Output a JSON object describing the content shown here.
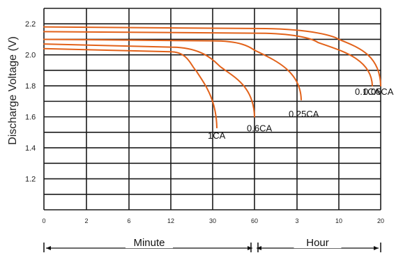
{
  "chart_data": {
    "type": "line",
    "ylabel": "Discharge Voltage (V)",
    "ylim": [
      1.0,
      2.3
    ],
    "yticks": [
      "1.2",
      "1.4",
      "1.6",
      "1.8",
      "2.0",
      "2.2"
    ],
    "xticks": [
      "0",
      "2",
      "6",
      "12",
      "30",
      "60",
      "3",
      "10",
      "20"
    ],
    "x_sections": [
      {
        "label": "Minute",
        "from_tick": 0,
        "to_tick": 5
      },
      {
        "label": "Hour",
        "from_tick": 5,
        "to_tick": 8
      }
    ],
    "grid": true,
    "series_color": "#e2621a",
    "series": [
      {
        "name": "1CA",
        "points": [
          [
            0,
            2.04
          ],
          [
            3,
            2.02
          ],
          [
            3.6,
            1.9
          ],
          [
            3.9,
            1.7
          ],
          [
            4.1,
            1.53
          ]
        ]
      },
      {
        "name": "0.6CA",
        "points": [
          [
            0,
            2.07
          ],
          [
            3,
            2.05
          ],
          [
            4.2,
            1.92
          ],
          [
            4.7,
            1.77
          ],
          [
            5.0,
            1.6
          ]
        ]
      },
      {
        "name": "0.25CA",
        "points": [
          [
            0,
            2.1
          ],
          [
            4,
            2.09
          ],
          [
            5.0,
            2.03
          ],
          [
            5.8,
            1.87
          ],
          [
            6.1,
            1.71
          ]
        ]
      },
      {
        "name": "0.1CA",
        "points": [
          [
            0,
            2.15
          ],
          [
            5,
            2.14
          ],
          [
            6.5,
            2.08
          ],
          [
            7.4,
            1.95
          ],
          [
            7.8,
            1.8
          ]
        ]
      },
      {
        "name": "0.05CA",
        "points": [
          [
            0,
            2.18
          ],
          [
            5,
            2.17
          ],
          [
            7,
            2.1
          ],
          [
            7.7,
            1.98
          ],
          [
            8.0,
            1.8
          ]
        ]
      }
    ]
  }
}
